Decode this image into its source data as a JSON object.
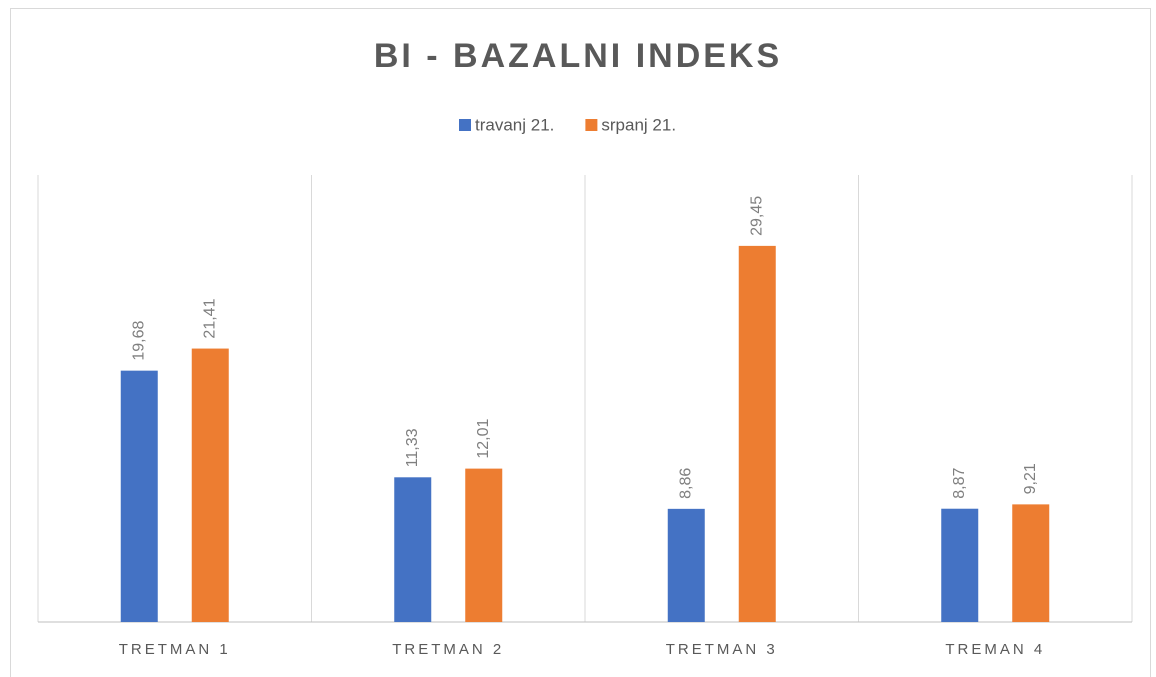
{
  "chart_data": {
    "type": "bar",
    "title": "BI - BAZALNI INDEKS",
    "categories": [
      "TRETMAN 1",
      "TRETMAN 2",
      "TRETMAN 3",
      "TREMAN 4"
    ],
    "series": [
      {
        "name": "travanj 21.",
        "color": "#4472c4",
        "values": [
          19.68,
          11.33,
          8.86,
          8.87
        ],
        "value_labels": [
          "19,68",
          "11,33",
          "8,86",
          "8,87"
        ]
      },
      {
        "name": "srpanj 21.",
        "color": "#ed7d31",
        "values": [
          21.41,
          12.01,
          29.45,
          9.21
        ],
        "value_labels": [
          "21,41",
          "12,01",
          "29,45",
          "9,21"
        ]
      }
    ],
    "ylim": [
      0,
      35
    ],
    "legend": "top"
  }
}
